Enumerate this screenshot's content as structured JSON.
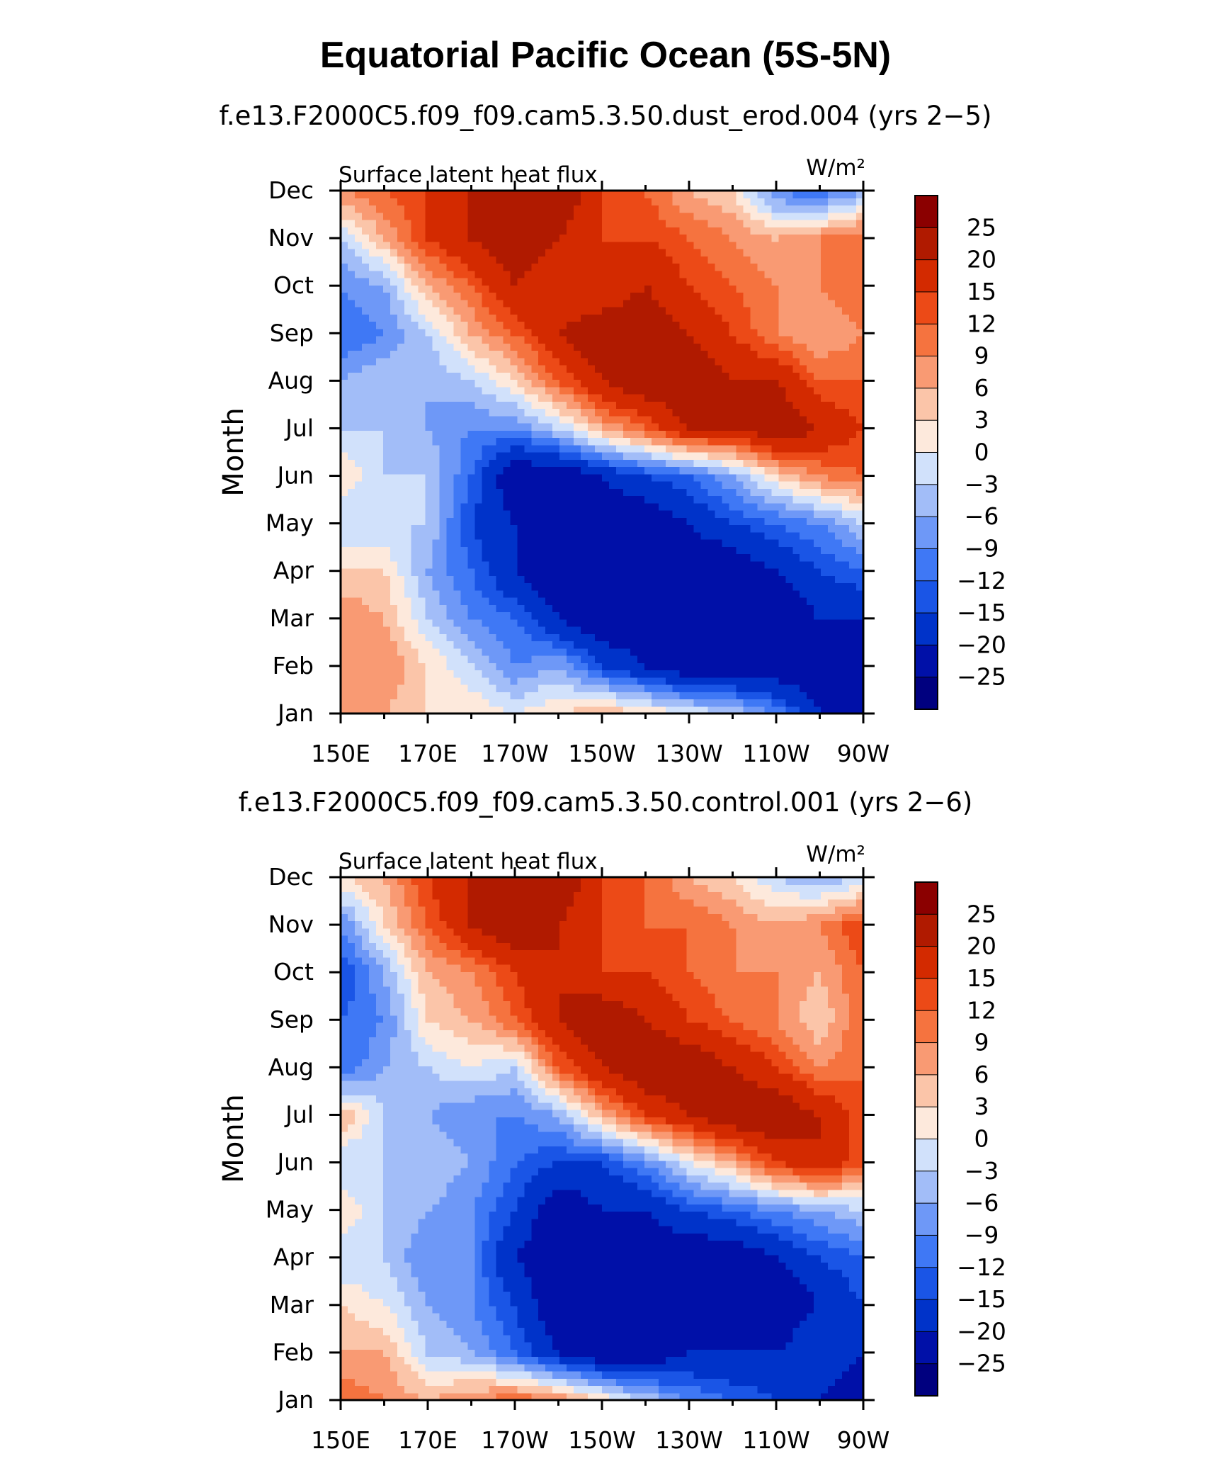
{
  "title": "Equatorial Pacific Ocean (5S-5N)",
  "colors": {
    "levels": [
      "#00007f",
      "#0010a8",
      "#0033c9",
      "#1a55e6",
      "#3f78f5",
      "#6e98f7",
      "#a2bdf8",
      "#d1e1fb",
      "#fde9dc",
      "#fbc5a9",
      "#f99a73",
      "#f5733f",
      "#ec4a17",
      "#d32a00",
      "#b01a00",
      "#8b0000"
    ]
  },
  "chart_data": [
    {
      "type": "heatmap",
      "subtitle": "f.e13.F2000C5.f09_f09.cam5.3.50.dust_erod.004 (yrs 2−5)",
      "left_label": "Surface latent heat flux",
      "units": "W/m²",
      "ylabel": "Month",
      "xticks": [
        "150E",
        "170E",
        "170W",
        "150W",
        "130W",
        "110W",
        "90W"
      ],
      "yticks": [
        "Jan",
        "Feb",
        "Mar",
        "Apr",
        "May",
        "Jun",
        "Jul",
        "Aug",
        "Sep",
        "Oct",
        "Nov",
        "Dec"
      ],
      "colorbar_labels": [
        "25",
        "20",
        "15",
        "12",
        "9",
        "6",
        "3",
        "0",
        "−3",
        "−6",
        "−9",
        "−12",
        "−15",
        "−20",
        "−25"
      ],
      "x_lon_range": [
        150,
        270
      ],
      "grid_lon": [
        150,
        160,
        170,
        180,
        190,
        200,
        210,
        220,
        230,
        240,
        250,
        260,
        270
      ],
      "grid_months": [
        "Jan",
        "Feb",
        "Mar",
        "Apr",
        "May",
        "Jun",
        "Jul",
        "Aug",
        "Sep",
        "Oct",
        "Nov",
        "Dec"
      ],
      "values": [
        [
          6,
          6,
          3,
          3,
          0,
          3,
          6,
          3,
          0,
          -3,
          -9,
          -20,
          -25
        ],
        [
          6,
          9,
          3,
          -3,
          -9,
          -6,
          -15,
          -20,
          -25,
          -25,
          -25,
          -25,
          -25
        ],
        [
          9,
          6,
          -3,
          -9,
          -12,
          -20,
          -25,
          -25,
          -25,
          -25,
          -25,
          -20,
          -20
        ],
        [
          3,
          3,
          -6,
          -12,
          -20,
          -25,
          -25,
          -25,
          -25,
          -25,
          -20,
          -15,
          -12
        ],
        [
          -3,
          -3,
          -3,
          -15,
          -20,
          -25,
          -25,
          -25,
          -20,
          -15,
          -12,
          -9,
          -3
        ],
        [
          3,
          -3,
          -3,
          -12,
          -25,
          -25,
          -20,
          -15,
          -12,
          -6,
          3,
          9,
          12
        ],
        [
          -3,
          -3,
          -6,
          -9,
          -9,
          -3,
          6,
          12,
          20,
          20,
          25,
          20,
          15
        ],
        [
          -6,
          -3,
          -6,
          -3,
          3,
          12,
          20,
          25,
          25,
          20,
          20,
          12,
          12
        ],
        [
          -12,
          -9,
          -3,
          6,
          12,
          20,
          25,
          25,
          20,
          15,
          9,
          6,
          9
        ],
        [
          -9,
          -6,
          6,
          12,
          20,
          15,
          15,
          20,
          15,
          12,
          9,
          9,
          12
        ],
        [
          -3,
          6,
          15,
          20,
          25,
          20,
          15,
          15,
          12,
          9,
          6,
          9,
          12
        ],
        [
          9,
          12,
          15,
          20,
          25,
          25,
          15,
          12,
          6,
          3,
          -9,
          -12,
          -6
        ]
      ]
    },
    {
      "type": "heatmap",
      "subtitle": "f.e13.F2000C5.f09_f09.cam5.3.50.control.001 (yrs 2−6)",
      "left_label": "Surface latent heat flux",
      "units": "W/m²",
      "ylabel": "Month",
      "xticks": [
        "150E",
        "170E",
        "170W",
        "150W",
        "130W",
        "110W",
        "90W"
      ],
      "yticks": [
        "Jan",
        "Feb",
        "Mar",
        "Apr",
        "May",
        "Jun",
        "Jul",
        "Aug",
        "Sep",
        "Oct",
        "Nov",
        "Dec"
      ],
      "colorbar_labels": [
        "25",
        "20",
        "15",
        "12",
        "9",
        "6",
        "3",
        "0",
        "−3",
        "−6",
        "−9",
        "−12",
        "−15",
        "−20",
        "−25"
      ],
      "x_lon_range": [
        150,
        270
      ],
      "grid_lon": [
        150,
        160,
        170,
        180,
        190,
        200,
        210,
        220,
        230,
        240,
        250,
        260,
        270
      ],
      "grid_months": [
        "Jan",
        "Feb",
        "Mar",
        "Apr",
        "May",
        "Jun",
        "Jul",
        "Aug",
        "Sep",
        "Oct",
        "Nov",
        "Dec"
      ],
      "values": [
        [
          12,
          9,
          6,
          9,
          12,
          9,
          3,
          -3,
          -9,
          -12,
          -15,
          -20,
          -25
        ],
        [
          6,
          6,
          -3,
          -6,
          -12,
          -20,
          -25,
          -25,
          -20,
          -20,
          -20,
          -15,
          -20
        ],
        [
          3,
          0,
          -6,
          -9,
          -15,
          -25,
          -25,
          -25,
          -25,
          -25,
          -25,
          -20,
          -15
        ],
        [
          -3,
          -3,
          -9,
          -9,
          -20,
          -25,
          -25,
          -25,
          -25,
          -25,
          -20,
          -15,
          -12
        ],
        [
          3,
          -3,
          -6,
          -9,
          -15,
          -25,
          -20,
          -20,
          -15,
          -12,
          -9,
          -6,
          -3
        ],
        [
          -3,
          -3,
          -3,
          -6,
          -12,
          -15,
          -15,
          -9,
          0,
          6,
          15,
          20,
          12
        ],
        [
          6,
          -3,
          -6,
          -9,
          -9,
          -6,
          6,
          15,
          20,
          25,
          25,
          20,
          12
        ],
        [
          -12,
          -6,
          -3,
          0,
          -3,
          12,
          20,
          25,
          25,
          20,
          15,
          9,
          12
        ],
        [
          -12,
          -9,
          3,
          6,
          12,
          20,
          25,
          20,
          15,
          12,
          9,
          3,
          12
        ],
        [
          -15,
          -6,
          6,
          9,
          15,
          20,
          15,
          15,
          12,
          9,
          9,
          6,
          12
        ],
        [
          -9,
          3,
          12,
          20,
          25,
          20,
          15,
          12,
          12,
          9,
          6,
          9,
          15
        ],
        [
          3,
          6,
          15,
          20,
          25,
          25,
          15,
          12,
          6,
          3,
          -3,
          -6,
          -3
        ]
      ]
    }
  ]
}
